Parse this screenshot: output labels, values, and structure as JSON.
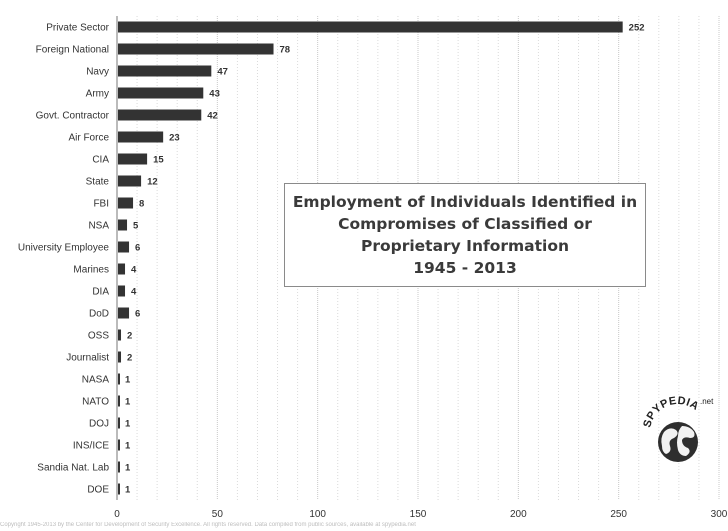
{
  "chart_data": {
    "type": "bar",
    "orientation": "horizontal",
    "title_lines": [
      "Employment of Individuals Identified in",
      "Compromises of Classified or",
      "Proprietary Information",
      "1945 - 2013"
    ],
    "categories": [
      "Private Sector",
      "Foreign National",
      "Navy",
      "Army",
      "Govt. Contractor",
      "Air Force",
      "CIA",
      "State",
      "FBI",
      "NSA",
      "University Employee",
      "Marines",
      "DIA",
      "DoD",
      "OSS",
      "Journalist",
      "NASA",
      "NATO",
      "DOJ",
      "INS/ICE",
      "Sandia Nat. Lab",
      "DOE"
    ],
    "values": [
      252,
      78,
      47,
      43,
      42,
      23,
      15,
      12,
      8,
      5,
      6,
      4,
      4,
      6,
      2,
      2,
      1,
      1,
      1,
      1,
      1,
      1
    ],
    "xlim": [
      0,
      300
    ],
    "x_ticks": [
      "0",
      "50",
      "100",
      "150",
      "200",
      "250",
      "300"
    ],
    "grid": true,
    "bar_color": "#333333"
  },
  "logo": {
    "text": "SPYPEDIA",
    "suffix": ".net"
  },
  "footer": {
    "text": "Copyright 1945-2013 by the Center for Development of Security Excellence. All rights reserved. Data compiled from public sources, available at spypedia.net"
  }
}
